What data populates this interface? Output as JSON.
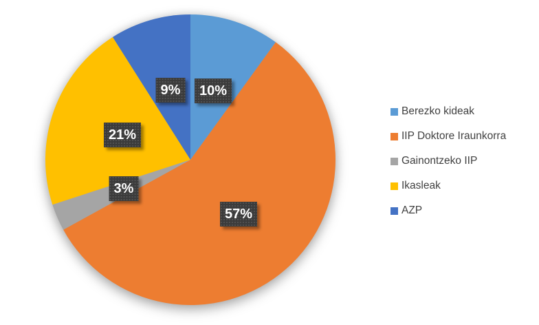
{
  "chart_data": {
    "type": "pie",
    "title": "",
    "start_angle_deg": 0,
    "direction": "clockwise",
    "legend_position": "right",
    "background_color": "#FFFFFF",
    "slices": [
      {
        "name": "Berezko kideak",
        "value": 10,
        "label": "10%",
        "color": "#5B9BD5"
      },
      {
        "name": "IIP Doktore Iraunkorra",
        "value": 57,
        "label": "57%",
        "color": "#ED7D31"
      },
      {
        "name": "Gainontzeko IIP",
        "value": 3,
        "label": "3%",
        "color": "#A5A5A5"
      },
      {
        "name": "Ikasleak",
        "value": 21,
        "label": "21%",
        "color": "#FFC000"
      },
      {
        "name": "AZP",
        "value": 9,
        "label": "9%",
        "color": "#4472C4"
      }
    ],
    "data_label_style": {
      "background": "#3B3B3B",
      "text_color": "#FFFFFF"
    },
    "legend_text_color": "#404040"
  }
}
